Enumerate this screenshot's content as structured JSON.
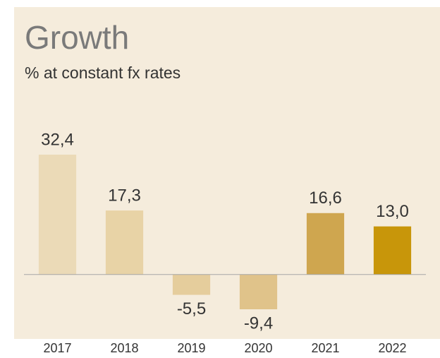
{
  "chart_data": {
    "type": "bar",
    "title": "Growth",
    "subtitle": "% at constant fx rates",
    "categories": [
      "2017",
      "2018",
      "2019",
      "2020",
      "2021",
      "2022"
    ],
    "values": [
      32.4,
      17.3,
      -5.5,
      -9.4,
      16.6,
      13.0
    ],
    "value_labels": [
      "32,4",
      "17,3",
      "-5,5",
      "-9,4",
      "16,6",
      "13,0"
    ],
    "colors": [
      "#ebdab7",
      "#e8d3a6",
      "#e5cd9c",
      "#e0c38a",
      "#cfa64f",
      "#c8960a"
    ]
  }
}
